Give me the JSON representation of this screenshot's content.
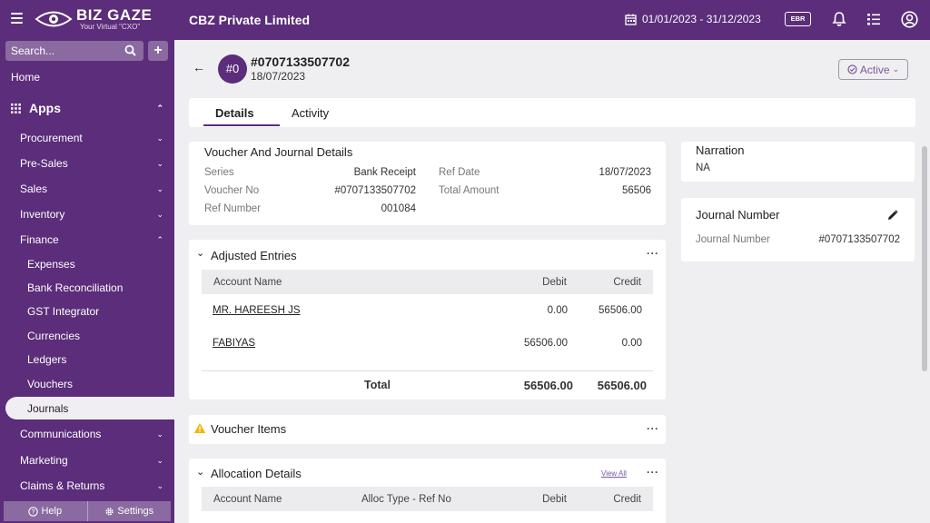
{
  "header": {
    "logo_title": "BIZ GAZE",
    "logo_sub": "Your Virtual \"CXO\"",
    "company": "CBZ Private Limited",
    "date_range": "01/01/2023 - 31/12/2023",
    "ebr_label": "EBR",
    "icons": [
      "hamburger-icon",
      "calendar-icon",
      "bell-icon",
      "list-icon",
      "user-icon"
    ]
  },
  "sidebar": {
    "search_placeholder": "Search...",
    "home": "Home",
    "apps": "Apps",
    "items": [
      {
        "label": "Procurement",
        "expanded": false
      },
      {
        "label": "Pre-Sales",
        "expanded": false
      },
      {
        "label": "Sales",
        "expanded": false
      },
      {
        "label": "Inventory",
        "expanded": false
      },
      {
        "label": "Finance",
        "expanded": true
      }
    ],
    "finance_items": [
      "Expenses",
      "Bank Reconciliation",
      "GST Integrator",
      "Currencies",
      "Ledgers",
      "Vouchers",
      "Journals"
    ],
    "active_item": "Journals",
    "more_items": [
      {
        "label": "Communications"
      },
      {
        "label": "Marketing"
      },
      {
        "label": "Claims & Returns"
      }
    ],
    "footer": {
      "help": "Help",
      "settings": "Settings"
    }
  },
  "record": {
    "badge": "#0",
    "title": "#0707133507702",
    "date": "18/07/2023",
    "status": "Active"
  },
  "tabs": [
    {
      "label": "Details",
      "active": true
    },
    {
      "label": "Activity",
      "active": false
    }
  ],
  "voucher_details": {
    "title": "Voucher And Journal Details",
    "left": [
      {
        "label": "Series",
        "value": "Bank Receipt"
      },
      {
        "label": "Voucher No",
        "value": "#0707133507702"
      },
      {
        "label": "Ref Number",
        "value": "001084"
      }
    ],
    "right": [
      {
        "label": "Ref Date",
        "value": "18/07/2023"
      },
      {
        "label": "Total Amount",
        "value": "56506"
      }
    ]
  },
  "adjusted_entries": {
    "title": "Adjusted Entries",
    "columns": [
      "Account Name",
      "Debit",
      "Credit"
    ],
    "rows": [
      {
        "account": "MR. HAREESH JS",
        "debit": "0.00",
        "credit": "56506.00"
      },
      {
        "account": "FABIYAS",
        "debit": "56506.00",
        "credit": "0.00"
      }
    ],
    "total_label": "Total",
    "total_debit": "56506.00",
    "total_credit": "56506.00"
  },
  "voucher_items": {
    "title": "Voucher Items"
  },
  "allocation_details": {
    "title": "Allocation Details",
    "view_all": "View All",
    "columns": [
      "Account Name",
      "Alloc Type - Ref No",
      "Debit",
      "Credit"
    ]
  },
  "narration": {
    "title": "Narration",
    "value": "NA"
  },
  "journal_number": {
    "title": "Journal Number",
    "label": "Journal Number",
    "value": "#0707133507702"
  },
  "colors": {
    "brand": "#5b2d7a",
    "warning": "#f5b400"
  }
}
